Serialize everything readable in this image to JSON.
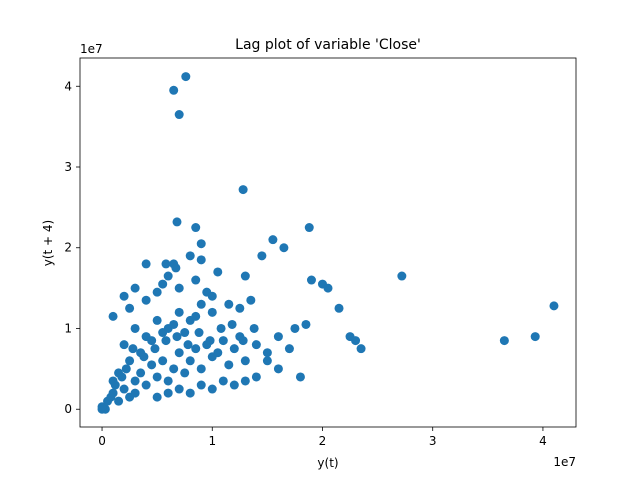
{
  "chart_data": {
    "type": "scatter",
    "title": "Lag plot of variable 'Close'",
    "xlabel": "y(t)",
    "ylabel": "y(t + 4)",
    "x_offset_label": "1e7",
    "y_offset_label": "1e7",
    "xlim": [
      -0.2,
      4.3
    ],
    "ylim": [
      -0.22,
      4.35
    ],
    "xticks": [
      0,
      1,
      2,
      3,
      4
    ],
    "yticks": [
      0,
      1,
      2,
      3,
      4
    ],
    "xtick_labels": [
      "0",
      "1",
      "2",
      "3",
      "4"
    ],
    "ytick_labels": [
      "0",
      "1",
      "2",
      "3",
      "4"
    ],
    "units_scale": 10000000,
    "grid": false,
    "marker_color": "#1f77b4",
    "series": [
      {
        "points": [
          [
            0.0,
            0.0
          ],
          [
            0.01,
            0.02
          ],
          [
            0.02,
            0.01
          ],
          [
            0.03,
            0.0
          ],
          [
            0.0,
            0.03
          ],
          [
            0.05,
            0.1
          ],
          [
            0.08,
            0.15
          ],
          [
            0.1,
            0.2
          ],
          [
            0.15,
            0.1
          ],
          [
            0.2,
            0.25
          ],
          [
            0.25,
            0.15
          ],
          [
            0.3,
            0.35
          ],
          [
            0.12,
            0.3
          ],
          [
            0.18,
            0.4
          ],
          [
            0.22,
            0.5
          ],
          [
            0.3,
            0.2
          ],
          [
            0.35,
            0.45
          ],
          [
            0.4,
            0.3
          ],
          [
            0.45,
            0.55
          ],
          [
            0.5,
            0.4
          ],
          [
            0.55,
            0.6
          ],
          [
            0.6,
            0.35
          ],
          [
            0.65,
            0.5
          ],
          [
            0.7,
            0.7
          ],
          [
            0.75,
            0.45
          ],
          [
            0.8,
            0.6
          ],
          [
            0.85,
            0.75
          ],
          [
            0.9,
            0.5
          ],
          [
            0.95,
            0.8
          ],
          [
            1.0,
            0.65
          ],
          [
            1.05,
            0.7
          ],
          [
            1.1,
            0.85
          ],
          [
            1.15,
            0.55
          ],
          [
            1.2,
            0.75
          ],
          [
            1.25,
            0.9
          ],
          [
            1.3,
            0.6
          ],
          [
            1.4,
            0.8
          ],
          [
            1.5,
            0.7
          ],
          [
            1.6,
            0.9
          ],
          [
            1.7,
            0.75
          ],
          [
            0.2,
            0.8
          ],
          [
            0.3,
            1.0
          ],
          [
            0.4,
            0.9
          ],
          [
            0.5,
            1.1
          ],
          [
            0.6,
            1.0
          ],
          [
            0.7,
            1.2
          ],
          [
            0.8,
            1.1
          ],
          [
            0.9,
            1.3
          ],
          [
            1.0,
            1.2
          ],
          [
            0.35,
            0.7
          ],
          [
            0.45,
            0.85
          ],
          [
            0.55,
            0.95
          ],
          [
            0.65,
            1.05
          ],
          [
            0.75,
            0.95
          ],
          [
            0.85,
            1.15
          ],
          [
            0.25,
            0.6
          ],
          [
            0.15,
            0.45
          ],
          [
            0.1,
            0.35
          ],
          [
            0.28,
            0.75
          ],
          [
            0.38,
            0.65
          ],
          [
            0.48,
            0.75
          ],
          [
            0.58,
            0.85
          ],
          [
            0.68,
            0.9
          ],
          [
            0.78,
            0.8
          ],
          [
            0.88,
            0.95
          ],
          [
            0.98,
            0.85
          ],
          [
            1.08,
            1.0
          ],
          [
            1.18,
            1.05
          ],
          [
            1.28,
            0.85
          ],
          [
            1.38,
            1.0
          ],
          [
            0.1,
            1.15
          ],
          [
            0.2,
            1.4
          ],
          [
            0.25,
            1.25
          ],
          [
            0.3,
            1.5
          ],
          [
            0.4,
            1.35
          ],
          [
            0.5,
            1.45
          ],
          [
            0.55,
            1.55
          ],
          [
            0.6,
            1.65
          ],
          [
            0.65,
            1.8
          ],
          [
            0.67,
            1.75
          ],
          [
            0.7,
            1.5
          ],
          [
            0.8,
            1.9
          ],
          [
            0.85,
            1.6
          ],
          [
            0.9,
            2.05
          ],
          [
            0.95,
            1.45
          ],
          [
            1.0,
            1.4
          ],
          [
            1.05,
            1.7
          ],
          [
            1.15,
            1.3
          ],
          [
            1.25,
            1.25
          ],
          [
            1.35,
            1.35
          ],
          [
            1.45,
            1.9
          ],
          [
            1.55,
            2.1
          ],
          [
            1.65,
            2.0
          ],
          [
            1.75,
            1.0
          ],
          [
            1.85,
            1.05
          ],
          [
            1.9,
            1.6
          ],
          [
            2.0,
            1.55
          ],
          [
            2.05,
            1.5
          ],
          [
            2.15,
            1.25
          ],
          [
            2.25,
            0.9
          ],
          [
            2.3,
            0.85
          ],
          [
            2.35,
            0.75
          ],
          [
            1.8,
            0.4
          ],
          [
            1.6,
            0.5
          ],
          [
            1.5,
            0.6
          ],
          [
            1.4,
            0.4
          ],
          [
            1.3,
            0.35
          ],
          [
            1.2,
            0.3
          ],
          [
            1.1,
            0.35
          ],
          [
            1.0,
            0.25
          ],
          [
            0.9,
            0.3
          ],
          [
            0.8,
            0.2
          ],
          [
            0.7,
            0.25
          ],
          [
            0.6,
            0.2
          ],
          [
            0.5,
            0.15
          ],
          [
            1.3,
            1.65
          ],
          [
            0.85,
            2.25
          ],
          [
            0.68,
            2.32
          ],
          [
            1.28,
            2.72
          ],
          [
            1.88,
            2.25
          ],
          [
            0.65,
            3.95
          ],
          [
            0.76,
            4.12
          ],
          [
            0.7,
            3.65
          ],
          [
            2.72,
            1.65
          ],
          [
            3.65,
            0.85
          ],
          [
            3.93,
            0.9
          ],
          [
            4.1,
            1.28
          ],
          [
            0.4,
            1.8
          ],
          [
            0.58,
            1.8
          ],
          [
            0.9,
            1.85
          ]
        ]
      }
    ]
  }
}
